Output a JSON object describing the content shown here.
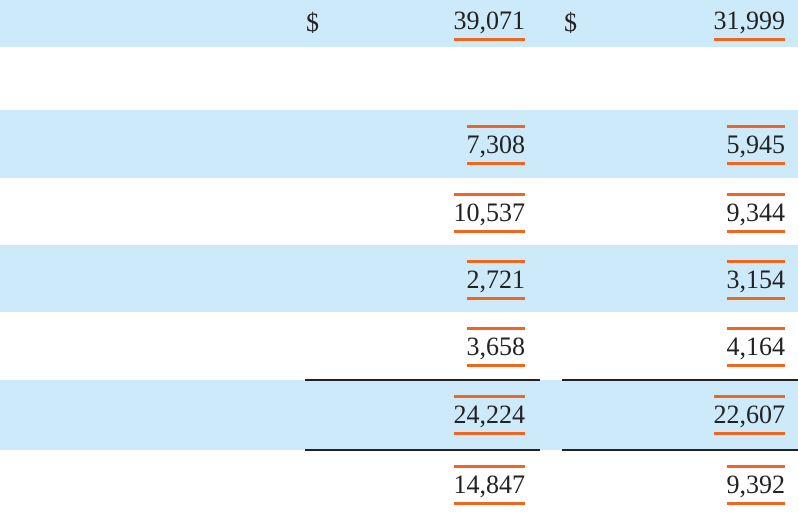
{
  "table": {
    "rows": [
      {
        "cells": [
          {
            "symbol": "$",
            "amount": "39,071"
          },
          {
            "symbol": "$",
            "amount": "31,999"
          }
        ]
      },
      {
        "cells": [
          {
            "amount": "7,308"
          },
          {
            "amount": "5,945"
          }
        ]
      },
      {
        "cells": [
          {
            "amount": "10,537"
          },
          {
            "amount": "9,344"
          }
        ]
      },
      {
        "cells": [
          {
            "amount": "2,721"
          },
          {
            "amount": "3,154"
          }
        ]
      },
      {
        "cells": [
          {
            "amount": "3,658"
          },
          {
            "amount": "4,164"
          }
        ]
      },
      {
        "cells": [
          {
            "amount": "24,224"
          },
          {
            "amount": "22,607"
          }
        ]
      },
      {
        "cells": [
          {
            "amount": "14,847"
          },
          {
            "amount": "9,392"
          }
        ]
      }
    ]
  }
}
